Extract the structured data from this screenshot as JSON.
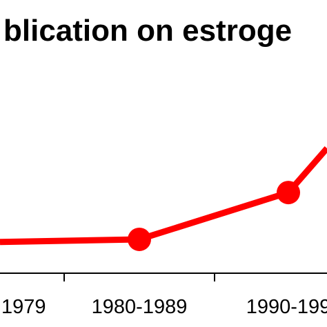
{
  "chart_data": {
    "type": "line",
    "title": "blication on estroge",
    "categories": [
      "1979",
      "1980-1989",
      "1990-199"
    ],
    "series": [
      {
        "values": [
          null,
          0.8,
          2.6
        ],
        "color": "#ff0000"
      }
    ],
    "partial_points": {
      "left_edge_value": 0.7,
      "right_edge_value": 4.3
    },
    "ylim": [
      -0.5,
      10
    ],
    "grid": false,
    "legend": "none"
  }
}
